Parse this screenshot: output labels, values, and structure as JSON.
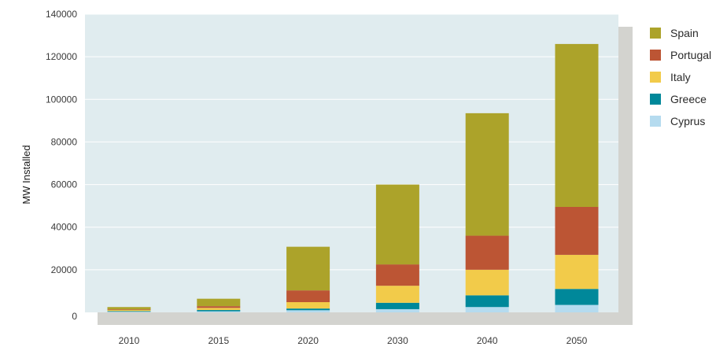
{
  "chart_data": {
    "type": "bar",
    "stacked": true,
    "categories": [
      "2010",
      "2015",
      "2020",
      "2030",
      "2040",
      "2050"
    ],
    "series": [
      {
        "name": "Cyprus",
        "color": "#b5dbef",
        "values": [
          300,
          500,
          1000,
          1500,
          2500,
          3500
        ]
      },
      {
        "name": "Greece",
        "color": "#00889a",
        "values": [
          300,
          600,
          800,
          3000,
          5500,
          7500
        ]
      },
      {
        "name": "Italy",
        "color": "#f2cb4a",
        "values": [
          500,
          1000,
          3000,
          8000,
          12000,
          16000
        ]
      },
      {
        "name": "Portugal",
        "color": "#bc5534",
        "values": [
          300,
          800,
          5500,
          10000,
          16000,
          22500
        ]
      },
      {
        "name": "Spain",
        "color": "#ac a32a",
        "values": [
          1100,
          3500,
          20500,
          37500,
          57500,
          76500
        ]
      }
    ],
    "title": "",
    "xlabel": "",
    "ylabel": "MW Installed",
    "ylim": [
      0,
      140000
    ],
    "yticks": [
      0,
      20000,
      40000,
      60000,
      80000,
      100000,
      120000,
      140000
    ],
    "grid": true,
    "legend": "right",
    "legend_order": [
      "Spain",
      "Portugal",
      "Italy",
      "Greece",
      "Cyprus"
    ],
    "plot_background": "#e0ecef",
    "shadow_color": "#d3d3cf"
  }
}
